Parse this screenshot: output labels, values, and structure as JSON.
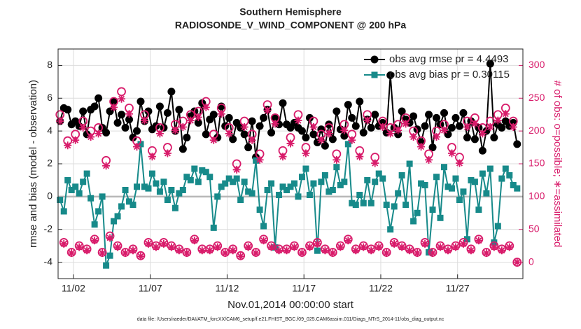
{
  "chart_data": {
    "type": "line",
    "title": "Southern Hemisphere",
    "subtitle": "RADIOSONDE_V_WIND_COMPONENT @ 200 hPa",
    "xlabel": "Nov.01,2014 00:00:00 start",
    "ylabel": "rmse and bias (model - observation)",
    "y2label": "# of obs: o=possible; ∗=assimilated",
    "footnote": "data file: /Users/raeder/DAI/ATM_forcXX/CAM6_setup/f.e21.FHIST_BGC.f09_025.CAM6assim.011/Diags_NTrS_2014-11/obs_diag_output.nc",
    "legend": "northeast",
    "grid": true,
    "xlim": [
      0,
      30.25
    ],
    "xticks": [
      {
        "value": 1,
        "label": "11/02"
      },
      {
        "value": 6,
        "label": "11/07"
      },
      {
        "value": 11,
        "label": "11/12"
      },
      {
        "value": 16,
        "label": "11/17"
      },
      {
        "value": 21,
        "label": "11/22"
      },
      {
        "value": 26,
        "label": "11/27"
      }
    ],
    "ylim": [
      -5,
      9
    ],
    "yticks": [
      -4,
      -2,
      0,
      2,
      4,
      6,
      8
    ],
    "y2lim": [
      -25,
      325
    ],
    "y2ticks": [
      0,
      50,
      100,
      150,
      200,
      250,
      300
    ],
    "x": [
      0.125,
      0.375,
      0.625,
      0.875,
      1.125,
      1.375,
      1.625,
      1.875,
      2.125,
      2.375,
      2.625,
      2.875,
      3.125,
      3.375,
      3.625,
      3.875,
      4.125,
      4.375,
      4.625,
      4.875,
      5.125,
      5.375,
      5.625,
      5.875,
      6.125,
      6.375,
      6.625,
      6.875,
      7.125,
      7.375,
      7.625,
      7.875,
      8.125,
      8.375,
      8.625,
      8.875,
      9.125,
      9.375,
      9.625,
      9.875,
      10.125,
      10.375,
      10.625,
      10.875,
      11.125,
      11.375,
      11.625,
      11.875,
      12.125,
      12.375,
      12.625,
      12.875,
      13.125,
      13.375,
      13.625,
      13.875,
      14.125,
      14.375,
      14.625,
      14.875,
      15.125,
      15.375,
      15.625,
      15.875,
      16.125,
      16.375,
      16.625,
      16.875,
      17.125,
      17.375,
      17.625,
      17.875,
      18.125,
      18.375,
      18.625,
      18.875,
      19.125,
      19.375,
      19.625,
      19.875,
      20.125,
      20.375,
      20.625,
      20.875,
      21.125,
      21.375,
      21.625,
      21.875,
      22.125,
      22.375,
      22.625,
      22.875,
      23.125,
      23.375,
      23.625,
      23.875,
      24.125,
      24.375,
      24.625,
      24.875,
      25.125,
      25.375,
      25.625,
      25.875,
      26.125,
      26.375,
      26.625,
      26.875,
      27.125,
      27.375,
      27.625,
      27.875,
      28.125,
      28.375,
      28.625,
      28.875,
      29.125,
      29.375,
      29.625,
      29.875
    ],
    "series": [
      {
        "name": "obs avg rmse pr = 4.4493",
        "color": "#000000",
        "marker": "dot",
        "values": [
          4.6,
          5.4,
          5.3,
          4.4,
          4.6,
          4.3,
          5.2,
          3.8,
          5.3,
          5.5,
          6.0,
          4.2,
          3.9,
          5.2,
          5.8,
          4.5,
          5.0,
          4.2,
          4.7,
          3.6,
          4.0,
          5.8,
          4.6,
          5.2,
          4.1,
          4.3,
          5.5,
          4.2,
          5.1,
          6.4,
          4.0,
          5.3,
          2.9,
          3.6,
          4.9,
          5.2,
          4.5,
          5.7,
          3.8,
          4.7,
          5.0,
          3.6,
          5.5,
          4.3,
          4.8,
          3.5,
          4.5,
          4.2,
          3.8,
          3.0,
          4.6,
          2.4,
          4.3,
          4.8,
          5.3,
          3.9,
          4.8,
          4.4,
          5.7,
          4.4,
          4.2,
          4.5,
          4.2,
          4.0,
          3.6,
          4.8,
          3.8,
          3.3,
          4.1,
          3.1,
          4.4,
          3.5,
          5.2,
          4.1,
          3.7,
          5.6,
          4.8,
          4.3,
          5.8,
          3.9,
          4.7,
          4.2,
          5.0,
          4.3,
          4.5,
          3.9,
          7.4,
          4.2,
          3.8,
          5.2,
          4.7,
          4.5,
          4.9,
          4.1,
          3.3,
          4.3,
          5.0,
          3.0,
          4.8,
          4.4,
          5.1,
          3.8,
          4.2,
          4.8,
          4.3,
          5.1,
          3.6,
          4.6,
          3.5,
          4.2,
          2.8,
          4.0,
          8.1,
          3.6,
          4.4,
          4.2,
          4.6,
          4.3,
          4.5,
          3.2
        ]
      },
      {
        "name": "obs avg bias pr = 0.30115",
        "color": "#178a8a",
        "marker": "square",
        "values": [
          -0.2,
          -0.9,
          1.0,
          0.4,
          0.6,
          0.2,
          0.9,
          1.4,
          -0.1,
          -1.7,
          -0.9,
          0.0,
          -4.2,
          -3.6,
          -1.5,
          -1.2,
          -0.6,
          0.4,
          -0.3,
          -0.5,
          0.6,
          3.2,
          0.6,
          0.5,
          1.4,
          0.8,
          0.3,
          0.9,
          -0.2,
          0.4,
          -0.7,
          0.2,
          0.4,
          1.2,
          1.0,
          1.7,
          0.9,
          1.6,
          1.5,
          1.2,
          -1.9,
          0.0,
          0.6,
          0.8,
          1.1,
          0.9,
          1.1,
          -0.2,
          0.9,
          0.3,
          0.2,
          2.2,
          -0.8,
          -1.8,
          0.4,
          0.8,
          -3.1,
          0.1,
          0.6,
          0.4,
          0.6,
          0.8,
          0.0,
          1.2,
          1.7,
          0.1,
          0.8,
          -3.3,
          0.9,
          1.3,
          0.3,
          0.4,
          1.8,
          0.7,
          0.9,
          3.2,
          -0.4,
          -0.5,
          0.1,
          -0.4,
          1.0,
          -0.4,
          0.9,
          1.4,
          1.1,
          -0.5,
          -2.0,
          -0.6,
          0.2,
          1.3,
          -0.5,
          2.0,
          -1.5,
          -1.0,
          0.8,
          0.7,
          -3.4,
          -0.8,
          1.2,
          -1.3,
          1.8,
          0.6,
          0.5,
          1.1,
          -0.2,
          0.3,
          -2.6,
          1.0,
          0.9,
          -0.8,
          1.4,
          0.2,
          1.7,
          -2.8,
          -1.8,
          1.1,
          1.7,
          1.3,
          0.7,
          0.5
        ]
      },
      {
        "color": "#d81b6a",
        "axis": "y2",
        "marker": "circle",
        "values": [
          225,
          30,
          185,
          15,
          195,
          25,
          215,
          20,
          200,
          35,
          205,
          15,
          155,
          40,
          245,
          25,
          260,
          15,
          235,
          20,
          185,
          10,
          225,
          30,
          170,
          25,
          205,
          30,
          175,
          25,
          210,
          20,
          215,
          15,
          225,
          35,
          230,
          20,
          245,
          20,
          195,
          25,
          235,
          15,
          205,
          20,
          150,
          10,
          215,
          25,
          195,
          15,
          165,
          35,
          240,
          25,
          220,
          20,
          170,
          20,
          190,
          25,
          225,
          15,
          175,
          25,
          215,
          30,
          195,
          20,
          205,
          15,
          165,
          25,
          210,
          35,
          195,
          20,
          170,
          25,
          225,
          20,
          160,
          25,
          215,
          15,
          205,
          30,
          210,
          25,
          220,
          20,
          200,
          15,
          185,
          30,
          165,
          15,
          200,
          25,
          210,
          20,
          175,
          25,
          160,
          30,
          215,
          20,
          220,
          35,
          205,
          15,
          215,
          25,
          225,
          20,
          235,
          25,
          215,
          0
        ]
      },
      {
        "color": "#d81b6a",
        "axis": "y2",
        "marker": "asterisk",
        "values": [
          215,
          28,
          178,
          14,
          186,
          23,
          205,
          18,
          191,
          33,
          196,
          14,
          147,
          37,
          236,
          23,
          249,
          14,
          226,
          18,
          176,
          9,
          216,
          28,
          161,
          23,
          196,
          28,
          166,
          23,
          201,
          18,
          206,
          14,
          216,
          33,
          221,
          18,
          236,
          18,
          186,
          23,
          226,
          14,
          196,
          18,
          141,
          9,
          206,
          23,
          186,
          14,
          156,
          33,
          231,
          23,
          211,
          18,
          161,
          18,
          181,
          23,
          216,
          14,
          166,
          23,
          206,
          28,
          186,
          18,
          196,
          14,
          156,
          23,
          201,
          33,
          186,
          18,
          161,
          23,
          216,
          18,
          151,
          23,
          206,
          14,
          196,
          28,
          201,
          23,
          211,
          18,
          191,
          14,
          176,
          28,
          156,
          14,
          191,
          23,
          201,
          18,
          166,
          23,
          151,
          28,
          206,
          18,
          211,
          33,
          196,
          14,
          206,
          23,
          216,
          18,
          226,
          23,
          206,
          0
        ]
      }
    ]
  }
}
